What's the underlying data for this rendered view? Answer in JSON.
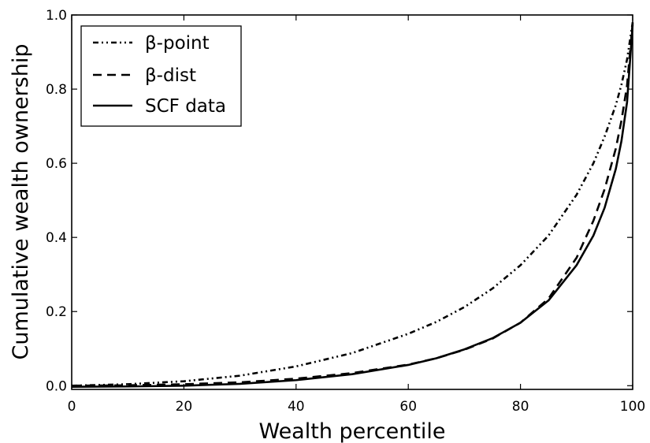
{
  "chart_data": {
    "type": "line",
    "xlabel": "Wealth percentile",
    "ylabel": "Cumulative wealth ownership",
    "xlim": [
      0,
      100
    ],
    "ylim": [
      -0.01,
      1.0
    ],
    "xticks": [
      0,
      20,
      40,
      60,
      80,
      100
    ],
    "yticks": [
      0.0,
      0.2,
      0.4,
      0.6,
      0.8,
      1.0
    ],
    "xtick_labels": [
      "0",
      "20",
      "40",
      "60",
      "80",
      "100"
    ],
    "ytick_labels": [
      "0.0",
      "0.2",
      "0.4",
      "0.6",
      "0.8",
      "1.0"
    ],
    "grid": false,
    "legend_position": "top-left",
    "series": [
      {
        "name": "β-point",
        "style": "dashdot",
        "color": "#000000",
        "x": [
          0,
          10,
          20,
          30,
          40,
          50,
          60,
          65,
          70,
          75,
          80,
          85,
          90,
          93,
          95,
          97,
          98,
          99,
          100
        ],
        "y": [
          0.0,
          0.004,
          0.012,
          0.027,
          0.052,
          0.088,
          0.14,
          0.172,
          0.212,
          0.262,
          0.325,
          0.405,
          0.515,
          0.6,
          0.672,
          0.757,
          0.812,
          0.88,
          0.98
        ]
      },
      {
        "name": "β-dist",
        "style": "dashed",
        "color": "#000000",
        "x": [
          0,
          10,
          20,
          30,
          40,
          50,
          60,
          65,
          70,
          75,
          80,
          85,
          90,
          93,
          95,
          97,
          98,
          99,
          100
        ],
        "y": [
          0.0,
          0.001,
          0.004,
          0.009,
          0.019,
          0.034,
          0.057,
          0.074,
          0.097,
          0.127,
          0.17,
          0.235,
          0.345,
          0.445,
          0.53,
          0.64,
          0.715,
          0.81,
          0.98
        ]
      },
      {
        "name": "SCF data",
        "style": "solid",
        "color": "#000000",
        "x": [
          0,
          10,
          20,
          30,
          40,
          50,
          60,
          65,
          70,
          75,
          80,
          85,
          90,
          93,
          95,
          97,
          98,
          99,
          100
        ],
        "y": [
          -0.003,
          -0.002,
          0.0,
          0.005,
          0.015,
          0.031,
          0.056,
          0.074,
          0.098,
          0.128,
          0.17,
          0.23,
          0.325,
          0.405,
          0.48,
          0.585,
          0.66,
          0.765,
          0.975
        ]
      }
    ]
  }
}
